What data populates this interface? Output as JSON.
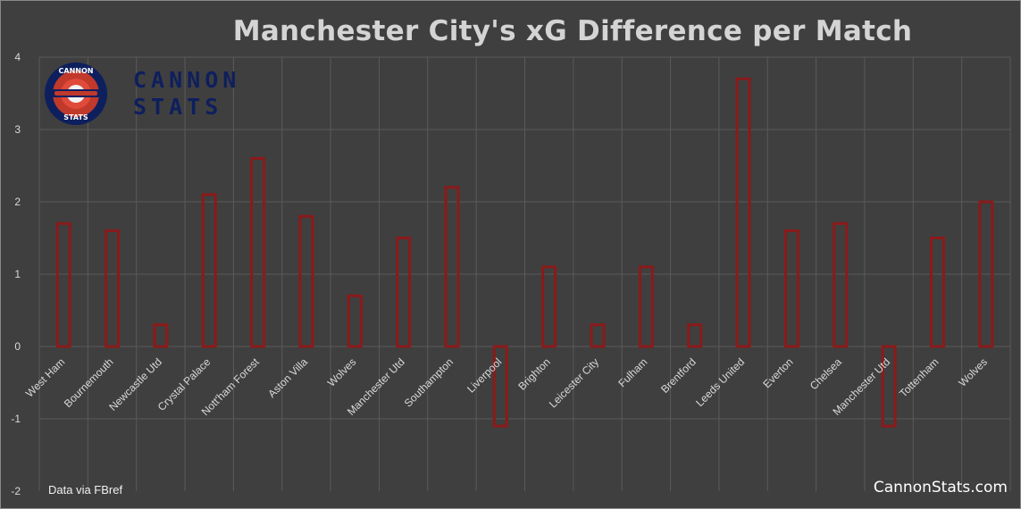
{
  "title": "Manchester City's xG Difference per Match",
  "source_note": "Data via FBref",
  "site_credit": "CannonStats.com",
  "logo": {
    "ring_text_top": "CANNON",
    "ring_text_bottom": "STATS",
    "wordmark_line1": "CANNON",
    "wordmark_line2": "STATS",
    "colors": {
      "navy": "#0e1f5e",
      "red": "#c0392b",
      "white": "#ffffff"
    }
  },
  "colors": {
    "background": "#3f3f3f",
    "grid": "#5a5a5a",
    "bar_stroke": "#8b1a1a",
    "tick_text": "#d9d9d9"
  },
  "chart_data": {
    "type": "bar",
    "title": "Manchester City's xG Difference per Match",
    "xlabel": "",
    "ylabel": "",
    "ylim": [
      -2,
      4
    ],
    "yticks": [
      -2,
      -1,
      0,
      1,
      2,
      3,
      4
    ],
    "grid": true,
    "categories": [
      "West Ham",
      "Bournemouth",
      "Newcastle Utd",
      "Crystal Palace",
      "Nott'ham Forest",
      "Aston Villa",
      "Wolves",
      "Manchester Utd",
      "Southampton",
      "Liverpool",
      "Brighton",
      "Leicester City",
      "Fulham",
      "Brentford",
      "Leeds United",
      "Everton",
      "Chelsea",
      "Manchester Utd",
      "Tottenham",
      "Wolves"
    ],
    "values": [
      1.7,
      1.6,
      0.3,
      2.1,
      2.6,
      1.8,
      0.7,
      1.5,
      2.2,
      -1.1,
      1.1,
      0.3,
      1.1,
      0.3,
      3.7,
      1.6,
      1.7,
      -1.1,
      1.5,
      2.0
    ]
  }
}
